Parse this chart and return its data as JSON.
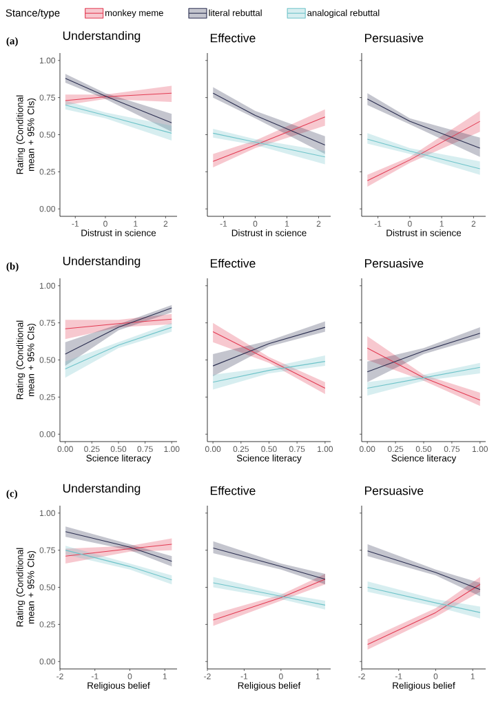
{
  "chart_data": [
    {
      "type": "line",
      "title": "Understanding",
      "annotations": [
        "(a)"
      ],
      "xlabel": "Distrust in science",
      "ylabel": "Rating (Conditional mean + 95% CIs)",
      "legend_title": "Stance/type",
      "legend": "top",
      "x": [
        -1.33,
        0,
        2.2
      ],
      "xlim": [
        -1.51,
        2.38
      ],
      "xticks": [
        -1,
        0,
        1,
        2
      ],
      "ylim": [
        -0.05,
        1.05
      ],
      "yticks": [
        {
          "value": 0,
          "label": "0.00"
        },
        {
          "value": 0.25,
          "label": "0.25"
        },
        {
          "value": 0.5,
          "label": "0.50"
        },
        {
          "value": 0.75,
          "label": "0.75"
        },
        {
          "value": 1,
          "label": "1.00"
        }
      ],
      "series": [
        {
          "name": "monkey meme",
          "color": "#e23a52",
          "values": [
            0.73,
            0.755,
            0.78
          ],
          "lower": [
            0.7,
            0.74,
            0.72
          ],
          "upper": [
            0.77,
            0.77,
            0.83
          ]
        },
        {
          "name": "literal rebuttal",
          "color": "#2a2d4f",
          "values": [
            0.88,
            0.76,
            0.58
          ],
          "lower": [
            0.85,
            0.74,
            0.52
          ],
          "upper": [
            0.91,
            0.78,
            0.64
          ]
        },
        {
          "name": "analogical rebuttal",
          "color": "#6ec3c9",
          "values": [
            0.7,
            0.63,
            0.51
          ],
          "lower": [
            0.67,
            0.61,
            0.46
          ],
          "upper": [
            0.73,
            0.65,
            0.56
          ]
        }
      ]
    },
    {
      "type": "line",
      "title": "Effective",
      "xlabel": "Distrust in science",
      "tick_labels": "x",
      "x": [
        -1.33,
        0,
        2.2
      ],
      "xlim": [
        -1.51,
        2.38
      ],
      "xticks": [
        -1,
        0,
        1,
        2
      ],
      "ylim": [
        -0.05,
        1.05
      ],
      "yticks": [
        0,
        0.25,
        0.5,
        0.75,
        1
      ],
      "series": [
        {
          "color": "#e23a52",
          "values": [
            0.32,
            0.43,
            0.62
          ],
          "lower": [
            0.28,
            0.41,
            0.56
          ],
          "upper": [
            0.37,
            0.46,
            0.67
          ]
        },
        {
          "color": "#2a2d4f",
          "values": [
            0.78,
            0.63,
            0.43
          ],
          "lower": [
            0.75,
            0.61,
            0.37
          ],
          "upper": [
            0.82,
            0.66,
            0.49
          ]
        },
        {
          "color": "#6ec3c9",
          "values": [
            0.51,
            0.45,
            0.35
          ],
          "lower": [
            0.48,
            0.43,
            0.3
          ],
          "upper": [
            0.54,
            0.47,
            0.39
          ]
        }
      ]
    },
    {
      "type": "line",
      "title": "Persuasive",
      "xlabel": "Distrust in science",
      "tick_labels": "x",
      "x": [
        -1.33,
        0,
        2.2
      ],
      "xlim": [
        -1.51,
        2.38
      ],
      "xticks": [
        -1,
        0,
        1,
        2
      ],
      "ylim": [
        -0.05,
        1.05
      ],
      "yticks": [
        0,
        0.25,
        0.5,
        0.75,
        1
      ],
      "series": [
        {
          "color": "#e23a52",
          "values": [
            0.19,
            0.33,
            0.59
          ],
          "lower": [
            0.15,
            0.31,
            0.52
          ],
          "upper": [
            0.23,
            0.35,
            0.66
          ]
        },
        {
          "color": "#2a2d4f",
          "values": [
            0.74,
            0.59,
            0.41
          ],
          "lower": [
            0.7,
            0.57,
            0.35
          ],
          "upper": [
            0.78,
            0.61,
            0.48
          ]
        },
        {
          "color": "#6ec3c9",
          "values": [
            0.47,
            0.39,
            0.27
          ],
          "lower": [
            0.44,
            0.37,
            0.23
          ],
          "upper": [
            0.51,
            0.41,
            0.32
          ]
        }
      ]
    },
    {
      "type": "line",
      "title": "Understanding",
      "annotations": [
        "(b)"
      ],
      "xlabel": "Science literacy",
      "ylabel": "Rating (Conditional mean + 95% CIs)",
      "x": [
        0,
        0.5,
        1
      ],
      "xlim": [
        -0.05,
        1.05
      ],
      "xticks": [
        {
          "value": 0,
          "label": "0.00"
        },
        {
          "value": 0.25,
          "label": "0.25"
        },
        {
          "value": 0.5,
          "label": "0.50"
        },
        {
          "value": 0.75,
          "label": "0.75"
        },
        {
          "value": 1,
          "label": "1.00"
        }
      ],
      "ylim": [
        -0.05,
        1.05
      ],
      "yticks": [
        {
          "value": 0,
          "label": "0.00"
        },
        {
          "value": 0.25,
          "label": "0.25"
        },
        {
          "value": 0.5,
          "label": "0.50"
        },
        {
          "value": 0.75,
          "label": "0.75"
        },
        {
          "value": 1,
          "label": "1.00"
        }
      ],
      "series": [
        {
          "color": "#e23a52",
          "values": [
            0.71,
            0.745,
            0.775
          ],
          "lower": [
            0.64,
            0.72,
            0.74
          ],
          "upper": [
            0.77,
            0.77,
            0.81
          ]
        },
        {
          "color": "#2a2d4f",
          "values": [
            0.54,
            0.72,
            0.85
          ],
          "lower": [
            0.46,
            0.7,
            0.82
          ],
          "upper": [
            0.62,
            0.74,
            0.87
          ]
        },
        {
          "color": "#6ec3c9",
          "values": [
            0.44,
            0.6,
            0.72
          ],
          "lower": [
            0.38,
            0.58,
            0.69
          ],
          "upper": [
            0.49,
            0.62,
            0.75
          ]
        }
      ]
    },
    {
      "type": "line",
      "title": "Effective",
      "xlabel": "Science literacy",
      "tick_labels": "x",
      "x": [
        0,
        0.5,
        1
      ],
      "xlim": [
        -0.05,
        1.05
      ],
      "xticks": [
        {
          "value": 0,
          "label": "0.00"
        },
        {
          "value": 0.25,
          "label": "0.25"
        },
        {
          "value": 0.5,
          "label": "0.50"
        },
        {
          "value": 0.75,
          "label": "0.75"
        },
        {
          "value": 1,
          "label": "1.00"
        }
      ],
      "ylim": [
        -0.05,
        1.05
      ],
      "yticks": [
        0,
        0.25,
        0.5,
        0.75,
        1
      ],
      "series": [
        {
          "color": "#e23a52",
          "values": [
            0.69,
            0.5,
            0.31
          ],
          "lower": [
            0.62,
            0.48,
            0.27
          ],
          "upper": [
            0.75,
            0.52,
            0.35
          ]
        },
        {
          "color": "#2a2d4f",
          "values": [
            0.46,
            0.61,
            0.72
          ],
          "lower": [
            0.39,
            0.59,
            0.69
          ],
          "upper": [
            0.54,
            0.63,
            0.76
          ]
        },
        {
          "color": "#6ec3c9",
          "values": [
            0.35,
            0.43,
            0.49
          ],
          "lower": [
            0.3,
            0.41,
            0.46
          ],
          "upper": [
            0.4,
            0.45,
            0.53
          ]
        }
      ]
    },
    {
      "type": "line",
      "title": "Persuasive",
      "xlabel": "Science literacy",
      "tick_labels": "x",
      "x": [
        0,
        0.5,
        1
      ],
      "xlim": [
        -0.05,
        1.05
      ],
      "xticks": [
        {
          "value": 0,
          "label": "0.00"
        },
        {
          "value": 0.25,
          "label": "0.25"
        },
        {
          "value": 0.5,
          "label": "0.50"
        },
        {
          "value": 0.75,
          "label": "0.75"
        },
        {
          "value": 1,
          "label": "1.00"
        }
      ],
      "ylim": [
        -0.05,
        1.05
      ],
      "yticks": [
        0,
        0.25,
        0.5,
        0.75,
        1
      ],
      "series": [
        {
          "color": "#e23a52",
          "values": [
            0.58,
            0.38,
            0.23
          ],
          "lower": [
            0.5,
            0.36,
            0.19
          ],
          "upper": [
            0.66,
            0.4,
            0.28
          ]
        },
        {
          "color": "#2a2d4f",
          "values": [
            0.42,
            0.56,
            0.68
          ],
          "lower": [
            0.35,
            0.54,
            0.65
          ],
          "upper": [
            0.49,
            0.58,
            0.72
          ]
        },
        {
          "color": "#6ec3c9",
          "values": [
            0.31,
            0.38,
            0.45
          ],
          "lower": [
            0.26,
            0.36,
            0.41
          ],
          "upper": [
            0.35,
            0.4,
            0.48
          ]
        }
      ]
    },
    {
      "type": "line",
      "title": "Understanding",
      "annotations": [
        "(c)"
      ],
      "xlabel": "Religious belief",
      "ylabel": "Rating (Conditional mean + 95% CIs)",
      "x": [
        -1.84,
        0,
        1.2
      ],
      "xlim": [
        -2.0,
        1.35
      ],
      "xticks": [
        -2,
        -1,
        0,
        1
      ],
      "ylim": [
        -0.05,
        1.05
      ],
      "yticks": [
        {
          "value": 0,
          "label": "0.00"
        },
        {
          "value": 0.25,
          "label": "0.25"
        },
        {
          "value": 0.5,
          "label": "0.50"
        },
        {
          "value": 0.75,
          "label": "0.75"
        },
        {
          "value": 1,
          "label": "1.00"
        }
      ],
      "series": [
        {
          "color": "#e23a52",
          "values": [
            0.71,
            0.76,
            0.79
          ],
          "lower": [
            0.66,
            0.74,
            0.75
          ],
          "upper": [
            0.76,
            0.78,
            0.83
          ]
        },
        {
          "color": "#2a2d4f",
          "values": [
            0.875,
            0.77,
            0.675
          ],
          "lower": [
            0.84,
            0.75,
            0.64
          ],
          "upper": [
            0.91,
            0.79,
            0.71
          ]
        },
        {
          "color": "#6ec3c9",
          "values": [
            0.75,
            0.64,
            0.55
          ],
          "lower": [
            0.72,
            0.62,
            0.52
          ],
          "upper": [
            0.78,
            0.66,
            0.58
          ]
        }
      ]
    },
    {
      "type": "line",
      "title": "Effective",
      "xlabel": "Religious belief",
      "tick_labels": "x",
      "x": [
        -1.84,
        0,
        1.2
      ],
      "xlim": [
        -2.0,
        1.35
      ],
      "xticks": [
        -2,
        -1,
        0,
        1
      ],
      "ylim": [
        -0.05,
        1.05
      ],
      "yticks": [
        0,
        0.25,
        0.5,
        0.75,
        1
      ],
      "series": [
        {
          "color": "#e23a52",
          "values": [
            0.28,
            0.43,
            0.555
          ],
          "lower": [
            0.24,
            0.41,
            0.52
          ],
          "upper": [
            0.32,
            0.45,
            0.59
          ]
        },
        {
          "color": "#2a2d4f",
          "values": [
            0.765,
            0.64,
            0.555
          ],
          "lower": [
            0.73,
            0.62,
            0.52
          ],
          "upper": [
            0.81,
            0.66,
            0.59
          ]
        },
        {
          "color": "#6ec3c9",
          "values": [
            0.53,
            0.44,
            0.38
          ],
          "lower": [
            0.5,
            0.42,
            0.35
          ],
          "upper": [
            0.57,
            0.46,
            0.41
          ]
        }
      ]
    },
    {
      "type": "line",
      "title": "Persuasive",
      "xlabel": "Religious belief",
      "tick_labels": "x",
      "x": [
        -1.84,
        0,
        1.2
      ],
      "xlim": [
        -2.0,
        1.35
      ],
      "xticks": [
        -2,
        -1,
        0,
        1
      ],
      "ylim": [
        -0.05,
        1.05
      ],
      "yticks": [
        0,
        0.25,
        0.5,
        0.75,
        1
      ],
      "series": [
        {
          "color": "#e23a52",
          "values": [
            0.115,
            0.33,
            0.52
          ],
          "lower": [
            0.08,
            0.3,
            0.47
          ],
          "upper": [
            0.15,
            0.36,
            0.57
          ]
        },
        {
          "color": "#2a2d4f",
          "values": [
            0.745,
            0.6,
            0.485
          ],
          "lower": [
            0.71,
            0.58,
            0.44
          ],
          "upper": [
            0.79,
            0.62,
            0.53
          ]
        },
        {
          "color": "#6ec3c9",
          "values": [
            0.5,
            0.395,
            0.33
          ],
          "lower": [
            0.47,
            0.37,
            0.29
          ],
          "upper": [
            0.54,
            0.42,
            0.37
          ]
        }
      ]
    }
  ]
}
